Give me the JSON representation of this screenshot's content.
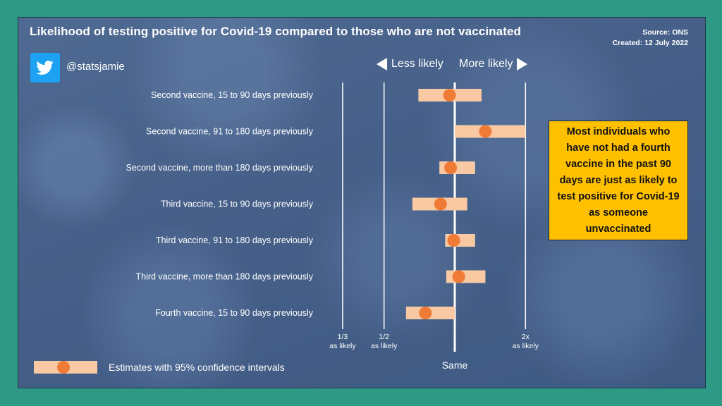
{
  "header": {
    "title": "Likelihood of testing positive for Covid-19 compared to those who are not vaccinated",
    "source": "Source: ONS",
    "created": "Created: 12 July 2022",
    "handle": "@statsjamie"
  },
  "callout": {
    "text": "Most individuals who have not had a fourth vaccine in the past 90 days are just as likely to test positive for Covid-19 as someone unvaccinated"
  },
  "legend": {
    "label": "Estimates with 95% confidence intervals"
  },
  "colors": {
    "interval": "#f9c9a4",
    "point": "#ef7b37",
    "line": "#ffffff",
    "callout": "#ffc000"
  },
  "chart_data": {
    "type": "scatter",
    "title": "Likelihood of testing positive for Covid-19 compared to those who are not vaccinated",
    "direction_labels": {
      "left": "Less likely",
      "right": "More likely"
    },
    "x_scale": "log2",
    "xlim": [
      0.3333,
      2.3
    ],
    "reference_lines": [
      {
        "value": 0.3333,
        "label_top": "1/3",
        "label_bottom": "as likely"
      },
      {
        "value": 0.5,
        "label_top": "1/2",
        "label_bottom": "as likely"
      },
      {
        "value": 1.0,
        "label_top": "",
        "label_bottom": "Same"
      },
      {
        "value": 2.0,
        "label_top": "2x",
        "label_bottom": "as likely"
      }
    ],
    "categories": [
      "Second vaccine, 15 to 90 days previously",
      "Second vaccine, 91 to 180 days previously",
      "Second vaccine, more than 180 days previously",
      "Third vaccine, 15 to 90 days previously",
      "Third vaccine, 91 to 180 days previously",
      "Third vaccine, more than 180 days previously",
      "Fourth vaccine, 15 to 90 days previously"
    ],
    "estimates": [
      0.95,
      1.35,
      0.96,
      0.87,
      0.99,
      1.04,
      0.75
    ],
    "lower": [
      0.7,
      1.0,
      0.86,
      0.66,
      0.91,
      0.92,
      0.62
    ],
    "upper": [
      1.3,
      2.0,
      1.22,
      1.13,
      1.22,
      1.35,
      1.0
    ]
  }
}
